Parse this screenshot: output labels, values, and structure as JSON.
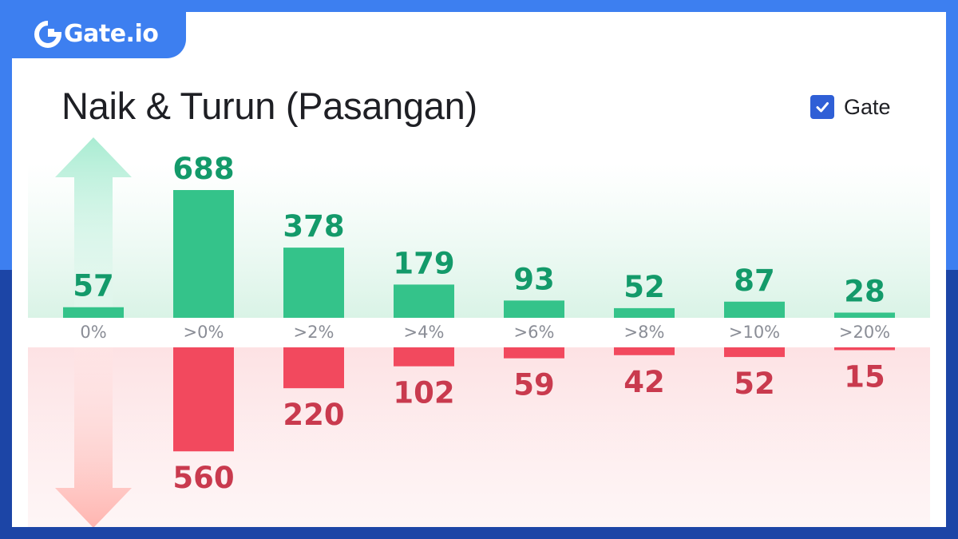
{
  "brand": {
    "name": "Gate.io",
    "icon": "gate-logo-icon"
  },
  "title": "Naik & Turun (Pasangan)",
  "legend": {
    "label": "Gate",
    "checked": true,
    "color": "#2f5fd6"
  },
  "colors": {
    "up": "#34c38a",
    "up_label": "#139a6a",
    "down": "#f2495e",
    "down_label": "#c93a4e"
  },
  "chart_data": {
    "type": "bar",
    "title": "Naik & Turun (Pasangan)",
    "categories": [
      "0%",
      ">0%",
      ">2%",
      ">4%",
      ">6%",
      ">8%",
      ">10%",
      ">20%"
    ],
    "series": [
      {
        "name": "",
        "direction": "up",
        "values": [
          57,
          688,
          378,
          179,
          93,
          52,
          87,
          28
        ]
      },
      {
        "name": "",
        "direction": "down",
        "values": [
          null,
          560,
          220,
          102,
          59,
          42,
          52,
          15
        ]
      }
    ],
    "grid": false
  }
}
